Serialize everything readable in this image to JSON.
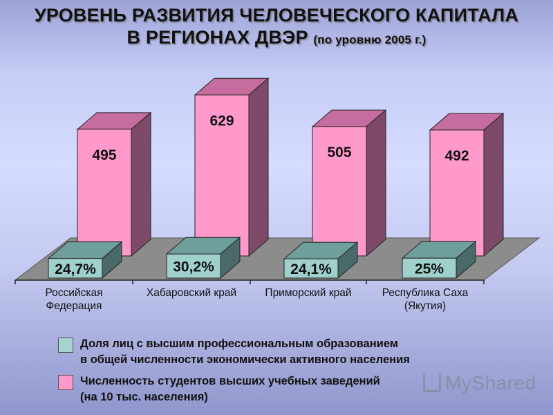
{
  "title": {
    "line1": "УРОВЕНЬ РАЗВИТИЯ ЧЕЛОВЕЧЕСКОГО КАПИТАЛА",
    "line2": "В РЕГИОНАХ ДВЭР",
    "line2_suffix": "(по уровню 2005 г.)"
  },
  "chart_data": {
    "type": "bar",
    "categories": [
      "Российская\nФедерация",
      "Хабаровский край",
      "Приморский край",
      "Республика Саха\n(Якутия)"
    ],
    "series": [
      {
        "name": "Численность студентов высших учебных заведений (на 10 тыс. населения)",
        "values": [
          495,
          629,
          505,
          492
        ],
        "labels": [
          "495",
          "629",
          "505",
          "492"
        ],
        "color": "#ff99cc",
        "top_color": "#c46d9e",
        "side_color": "#7e4a6a"
      },
      {
        "name": "Доля лиц с высшим профессиональным образованием в общей численности экономически активного населения",
        "values": [
          24.7,
          30.2,
          24.1,
          25
        ],
        "labels": [
          "24,7%",
          "30,2%",
          "24,1%",
          "25%"
        ],
        "color": "#9fd0cc",
        "top_color": "#6f9f9c",
        "side_color": "#4a6a6a"
      }
    ],
    "grid": false,
    "legend_position": "bottom"
  },
  "legend": [
    {
      "text": "Доля лиц с высшим профессиональным образованием\nв общей численности экономически активного населения",
      "color": "#a5d4d0"
    },
    {
      "text": "Численность студентов высших учебных заведений\n(на 10 тыс. населения)",
      "color": "#ff99cc"
    }
  ],
  "watermark": "MyShared"
}
